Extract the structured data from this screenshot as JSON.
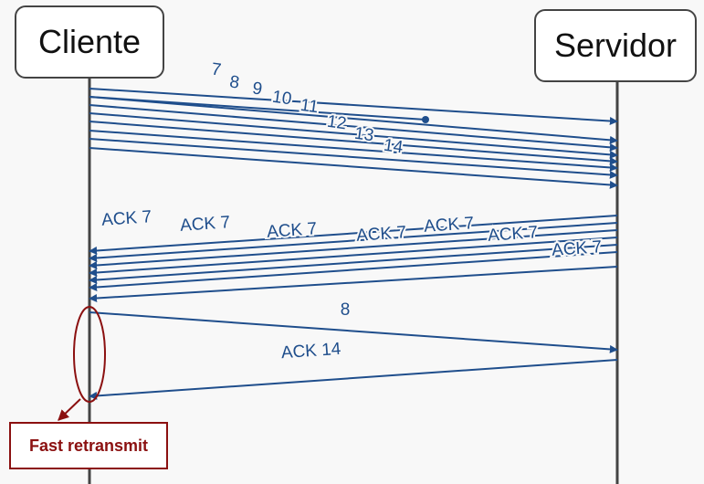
{
  "nodes": {
    "client": "Cliente",
    "server": "Servidor"
  },
  "segment_labels": [
    "7",
    "8",
    "9",
    "10",
    "11",
    "12",
    "13",
    "14"
  ],
  "ack_labels": [
    "ACK 7",
    "ACK 7",
    "ACK 7",
    "ACK 7",
    "ACK 7",
    "ACK 7",
    "ACK 7"
  ],
  "retransmit_label": "8",
  "final_ack_label": "ACK 14",
  "callout": "Fast retransmit",
  "colors": {
    "arrow": "#1f4e8c",
    "label": "#1f4e8c",
    "lifeline": "#444444",
    "callout": "#8b1010"
  }
}
